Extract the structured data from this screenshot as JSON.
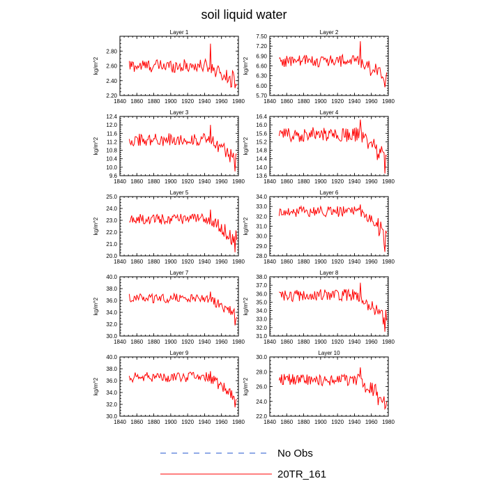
{
  "title": "soil liquid water",
  "legend": {
    "entries": [
      {
        "label": "No Obs",
        "color": "#2255cc",
        "dash": true
      },
      {
        "label": "20TR_161",
        "color": "#ff0000",
        "dash": false
      }
    ]
  },
  "series_color": "#ff0000",
  "chart_data": [
    {
      "type": "line",
      "title": "Layer 1",
      "ylabel": "kg/m^2",
      "xlim": [
        1840,
        1980
      ],
      "x_ticks": [
        1840,
        1860,
        1880,
        1900,
        1920,
        1940,
        1960,
        1980
      ],
      "ylim": [
        2.2,
        3.0
      ],
      "y_ticks": [
        2.2,
        2.4,
        2.6,
        2.8
      ],
      "y_tick_labels": [
        "2.20",
        "2.40",
        "2.60",
        "2.80"
      ],
      "x_start": 1851,
      "x_end": 1978,
      "base": 2.6,
      "amp": 0.09,
      "late_drop": 0.25,
      "peak_year": 1947,
      "peak": 2.9,
      "min": 2.3
    },
    {
      "type": "line",
      "title": "Layer 2",
      "ylabel": "kg/m^2",
      "xlim": [
        1840,
        1980
      ],
      "x_ticks": [
        1840,
        1860,
        1880,
        1900,
        1920,
        1940,
        1960,
        1980
      ],
      "ylim": [
        5.7,
        7.5
      ],
      "y_ticks": [
        5.7,
        6.0,
        6.3,
        6.6,
        6.9,
        7.2,
        7.5
      ],
      "y_tick_labels": [
        "5.70",
        "6.00",
        "6.30",
        "6.60",
        "6.90",
        "7.20",
        "7.50"
      ],
      "x_start": 1851,
      "x_end": 1978,
      "base": 6.75,
      "amp": 0.2,
      "late_drop": 0.55,
      "peak_year": 1947,
      "peak": 7.35,
      "min": 5.95
    },
    {
      "type": "line",
      "title": "Layer 3",
      "ylabel": "kg/m^2",
      "xlim": [
        1840,
        1980
      ],
      "x_ticks": [
        1840,
        1860,
        1880,
        1900,
        1920,
        1940,
        1960,
        1980
      ],
      "ylim": [
        9.6,
        12.4
      ],
      "y_ticks": [
        9.6,
        10.0,
        10.4,
        10.8,
        11.2,
        11.6,
        12.0,
        12.4
      ],
      "y_tick_labels": [
        "9.6",
        "10.0",
        "10.4",
        "10.8",
        "11.2",
        "11.6",
        "12.0",
        "12.4"
      ],
      "x_start": 1851,
      "x_end": 1978,
      "base": 11.3,
      "amp": 0.3,
      "late_drop": 0.95,
      "peak_year": 1947,
      "peak": 12.0,
      "min": 9.8
    },
    {
      "type": "line",
      "title": "Layer 4",
      "ylabel": "kg/m^2",
      "xlim": [
        1840,
        1980
      ],
      "x_ticks": [
        1840,
        1860,
        1880,
        1900,
        1920,
        1940,
        1960,
        1980
      ],
      "ylim": [
        13.6,
        16.4
      ],
      "y_ticks": [
        13.6,
        14.0,
        14.4,
        14.8,
        15.2,
        15.6,
        16.0,
        16.4
      ],
      "y_tick_labels": [
        "13.6",
        "14.0",
        "14.4",
        "14.8",
        "15.2",
        "15.6",
        "16.0",
        "16.4"
      ],
      "x_start": 1851,
      "x_end": 1978,
      "base": 15.55,
      "amp": 0.35,
      "late_drop": 1.05,
      "peak_year": 1947,
      "peak": 16.25,
      "min": 13.7
    },
    {
      "type": "line",
      "title": "Layer 5",
      "ylabel": "kg/m^2",
      "xlim": [
        1840,
        1980
      ],
      "x_ticks": [
        1840,
        1860,
        1880,
        1900,
        1920,
        1940,
        1960,
        1980
      ],
      "ylim": [
        20.0,
        25.0
      ],
      "y_ticks": [
        20.0,
        21.0,
        22.0,
        23.0,
        24.0,
        25.0
      ],
      "y_tick_labels": [
        "20.0",
        "21.0",
        "22.0",
        "23.0",
        "24.0",
        "25.0"
      ],
      "x_start": 1851,
      "x_end": 1978,
      "base": 23.1,
      "amp": 0.45,
      "late_drop": 1.8,
      "peak_year": 1947,
      "peak": 23.9,
      "min": 20.3
    },
    {
      "type": "line",
      "title": "Layer 6",
      "ylabel": "kg/m^2",
      "xlim": [
        1840,
        1980
      ],
      "x_ticks": [
        1840,
        1860,
        1880,
        1900,
        1920,
        1940,
        1960,
        1980
      ],
      "ylim": [
        28.0,
        34.0
      ],
      "y_ticks": [
        28.0,
        29.0,
        30.0,
        31.0,
        32.0,
        33.0,
        34.0
      ],
      "y_tick_labels": [
        "28.0",
        "29.0",
        "30.0",
        "31.0",
        "32.0",
        "33.0",
        "34.0"
      ],
      "x_start": 1851,
      "x_end": 1978,
      "base": 32.5,
      "amp": 0.55,
      "late_drop": 2.4,
      "peak_year": 1947,
      "peak": 33.2,
      "min": 28.4
    },
    {
      "type": "line",
      "title": "Layer 7",
      "ylabel": "kg/m^2",
      "xlim": [
        1840,
        1980
      ],
      "x_ticks": [
        1840,
        1860,
        1880,
        1900,
        1920,
        1940,
        1960,
        1980
      ],
      "ylim": [
        30.0,
        40.0
      ],
      "y_ticks": [
        30.0,
        32.0,
        34.0,
        36.0,
        38.0,
        40.0
      ],
      "y_tick_labels": [
        "30.0",
        "32.0",
        "34.0",
        "36.0",
        "38.0",
        "40.0"
      ],
      "x_start": 1851,
      "x_end": 1978,
      "base": 36.4,
      "amp": 0.8,
      "late_drop": 3.2,
      "peak_year": 1947,
      "peak": 37.5,
      "min": 31.8
    },
    {
      "type": "line",
      "title": "Layer 8",
      "ylabel": "kg/m^2",
      "xlim": [
        1840,
        1980
      ],
      "x_ticks": [
        1840,
        1860,
        1880,
        1900,
        1920,
        1940,
        1960,
        1980
      ],
      "ylim": [
        31.0,
        38.0
      ],
      "y_ticks": [
        31.0,
        32.0,
        33.0,
        34.0,
        35.0,
        36.0,
        37.0,
        38.0
      ],
      "y_tick_labels": [
        "31.0",
        "32.0",
        "33.0",
        "34.0",
        "35.0",
        "36.0",
        "37.0",
        "38.0"
      ],
      "x_start": 1851,
      "x_end": 1978,
      "base": 35.8,
      "amp": 0.75,
      "late_drop": 2.9,
      "peak_year": 1947,
      "peak": 37.3,
      "min": 31.5
    },
    {
      "type": "line",
      "title": "Layer 9",
      "ylabel": "kg/m^2",
      "xlim": [
        1840,
        1980
      ],
      "x_ticks": [
        1840,
        1860,
        1880,
        1900,
        1920,
        1940,
        1960,
        1980
      ],
      "ylim": [
        30.0,
        40.0
      ],
      "y_ticks": [
        30.0,
        32.0,
        34.0,
        36.0,
        38.0,
        40.0
      ],
      "y_tick_labels": [
        "30.0",
        "32.0",
        "34.0",
        "36.0",
        "38.0",
        "40.0"
      ],
      "x_start": 1851,
      "x_end": 1978,
      "base": 36.6,
      "amp": 0.85,
      "late_drop": 3.4,
      "peak_year": 1947,
      "peak": 37.6,
      "min": 31.5
    },
    {
      "type": "line",
      "title": "Layer 10",
      "ylabel": "kg/m^2",
      "xlim": [
        1840,
        1980
      ],
      "x_ticks": [
        1840,
        1860,
        1880,
        1900,
        1920,
        1940,
        1960,
        1980
      ],
      "ylim": [
        22.0,
        30.0
      ],
      "y_ticks": [
        22.0,
        24.0,
        26.0,
        28.0,
        30.0
      ],
      "y_tick_labels": [
        "22.0",
        "24.0",
        "26.0",
        "28.0",
        "30.0"
      ],
      "x_start": 1851,
      "x_end": 1978,
      "base": 26.9,
      "amp": 0.8,
      "late_drop": 2.9,
      "peak_year": 1947,
      "peak": 28.6,
      "min": 23.0
    }
  ]
}
